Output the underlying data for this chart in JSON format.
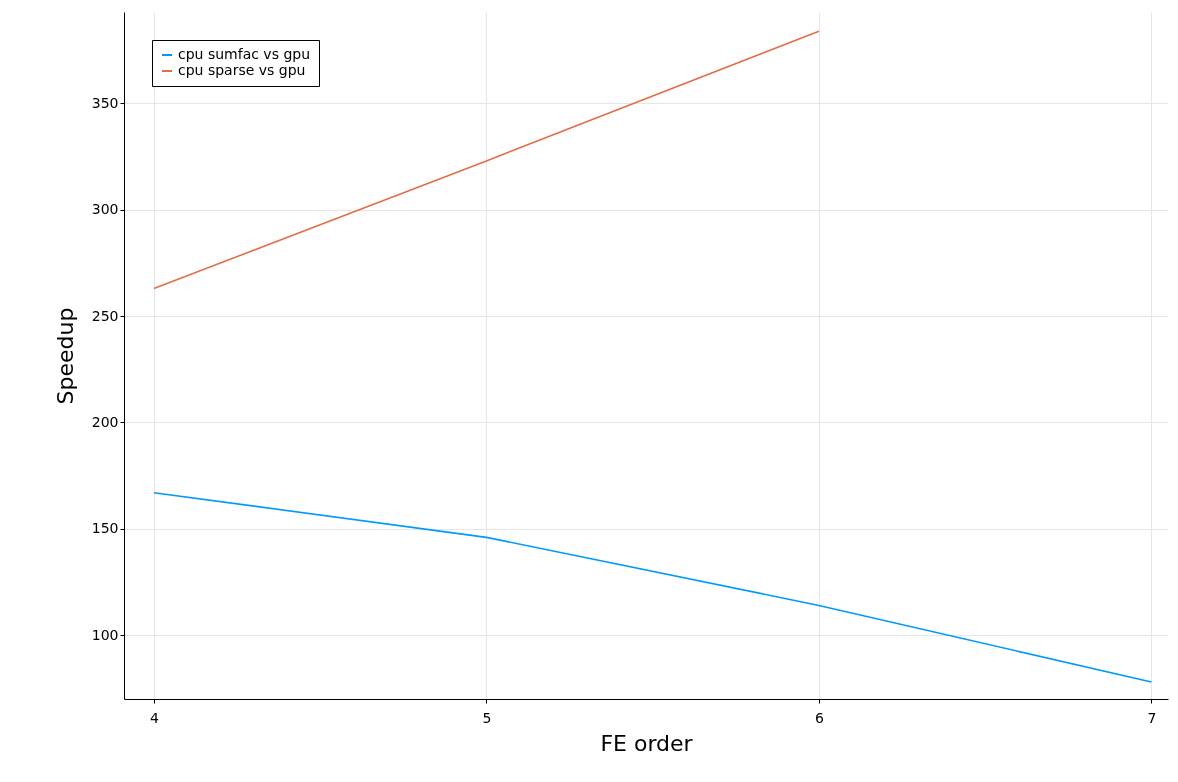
{
  "chart_data": {
    "type": "line",
    "xlabel": "FE order",
    "ylabel": "Speedup",
    "x": [
      4,
      5,
      6,
      7
    ],
    "series": [
      {
        "name": "cpu sumfac vs gpu",
        "color": "#009af9",
        "values": [
          167,
          146,
          114,
          78
        ]
      },
      {
        "name": "cpu sparse vs gpu",
        "color": "#e26f46",
        "values": [
          263,
          323,
          384,
          null
        ]
      }
    ],
    "xlim": [
      3.91,
      7.05
    ],
    "xticks": [
      4,
      5,
      6,
      7
    ],
    "ylim": [
      70,
      393
    ],
    "yticks": [
      100,
      150,
      200,
      250,
      300,
      350
    ],
    "grid": true,
    "legend": "top left"
  }
}
